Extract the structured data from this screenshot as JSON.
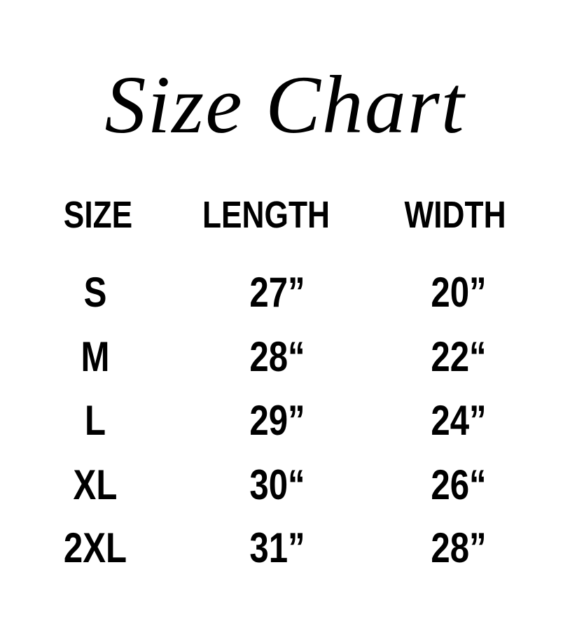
{
  "title": "Size Chart",
  "headers": [
    "SIZE",
    "LENGTH",
    "WIDTH"
  ],
  "rows": [
    [
      "S",
      "27”",
      "20”"
    ],
    [
      "M",
      "28“",
      "22“"
    ],
    [
      "L",
      "29”",
      "24”"
    ],
    [
      "XL",
      "30“",
      "26“"
    ],
    [
      "2XL",
      "31”",
      "28”"
    ]
  ]
}
